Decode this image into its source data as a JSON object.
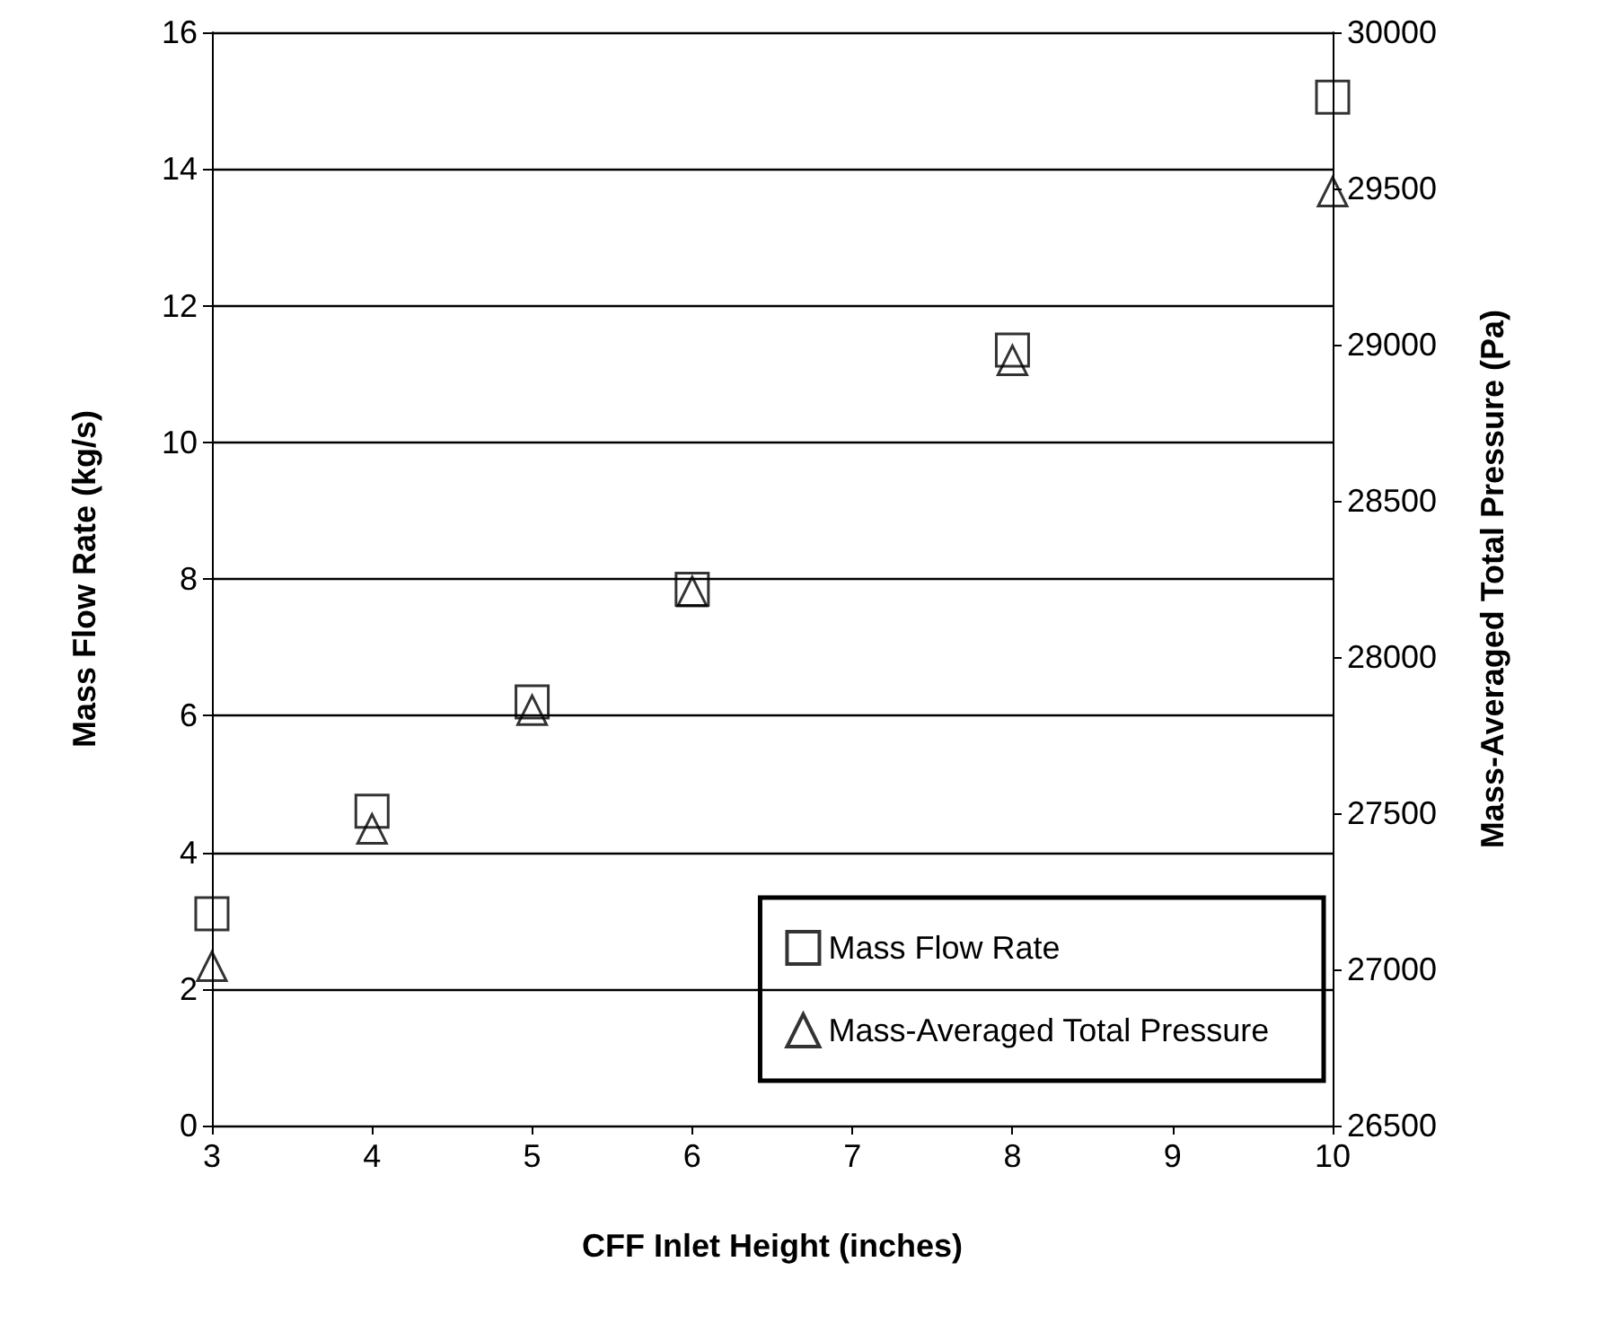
{
  "chart_data": {
    "type": "scatter",
    "xlabel": "CFF Inlet Height (inches)",
    "ylabel": "Mass Flow Rate (kg/s)",
    "y2label": "Mass-Averaged Total Pressure (Pa)",
    "x": [
      3,
      4,
      5,
      6,
      8,
      10
    ],
    "series": [
      {
        "name": "Mass Flow Rate",
        "color": "#000000",
        "marker": "square",
        "values": [
          3.1,
          4.6,
          6.2,
          7.85,
          11.35,
          15.05
        ]
      },
      {
        "name": "Mass-Averaged Total Pressure",
        "color": "#000000",
        "marker": "triangle",
        "axis": "y2",
        "values": [
          27010,
          27450,
          27830,
          28210,
          28950,
          29490
        ]
      }
    ],
    "xlim": [
      3,
      10
    ],
    "xticks": [
      3,
      4,
      5,
      6,
      7,
      8,
      9,
      10
    ],
    "ylim": [
      0,
      16
    ],
    "yticks": [
      0,
      2,
      4,
      6,
      8,
      10,
      12,
      14,
      16
    ],
    "y2lim": [
      26500,
      30000
    ],
    "y2ticks": [
      26500,
      27000,
      27500,
      28000,
      28500,
      29000,
      29500,
      30000
    ],
    "grid": "y",
    "legend": "bottom right"
  }
}
